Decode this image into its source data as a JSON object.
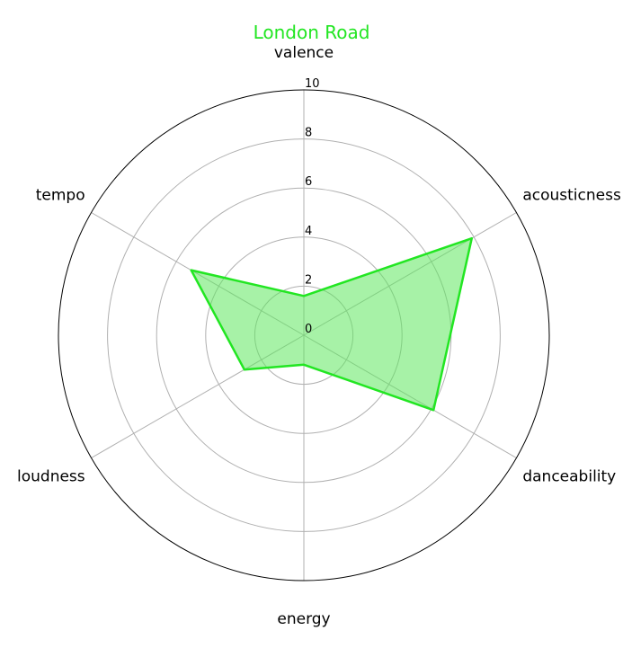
{
  "chart_data": {
    "type": "radar",
    "title": "London Road",
    "categories": [
      "valence",
      "acousticness",
      "danceability",
      "energy",
      "loudness",
      "tempo"
    ],
    "series": [
      {
        "values": [
          1.6,
          7.9,
          6.1,
          1.2,
          2.8,
          5.3
        ]
      }
    ],
    "r_ticks": [
      "0",
      "2",
      "4",
      "6",
      "8",
      "10"
    ],
    "rlim": [
      0,
      10
    ],
    "grid": true,
    "colors": {
      "title": "#22e622",
      "line": "#22e622",
      "fill": "#5ee85e",
      "grid": "#b0b0b0",
      "outline": "#000000"
    }
  }
}
